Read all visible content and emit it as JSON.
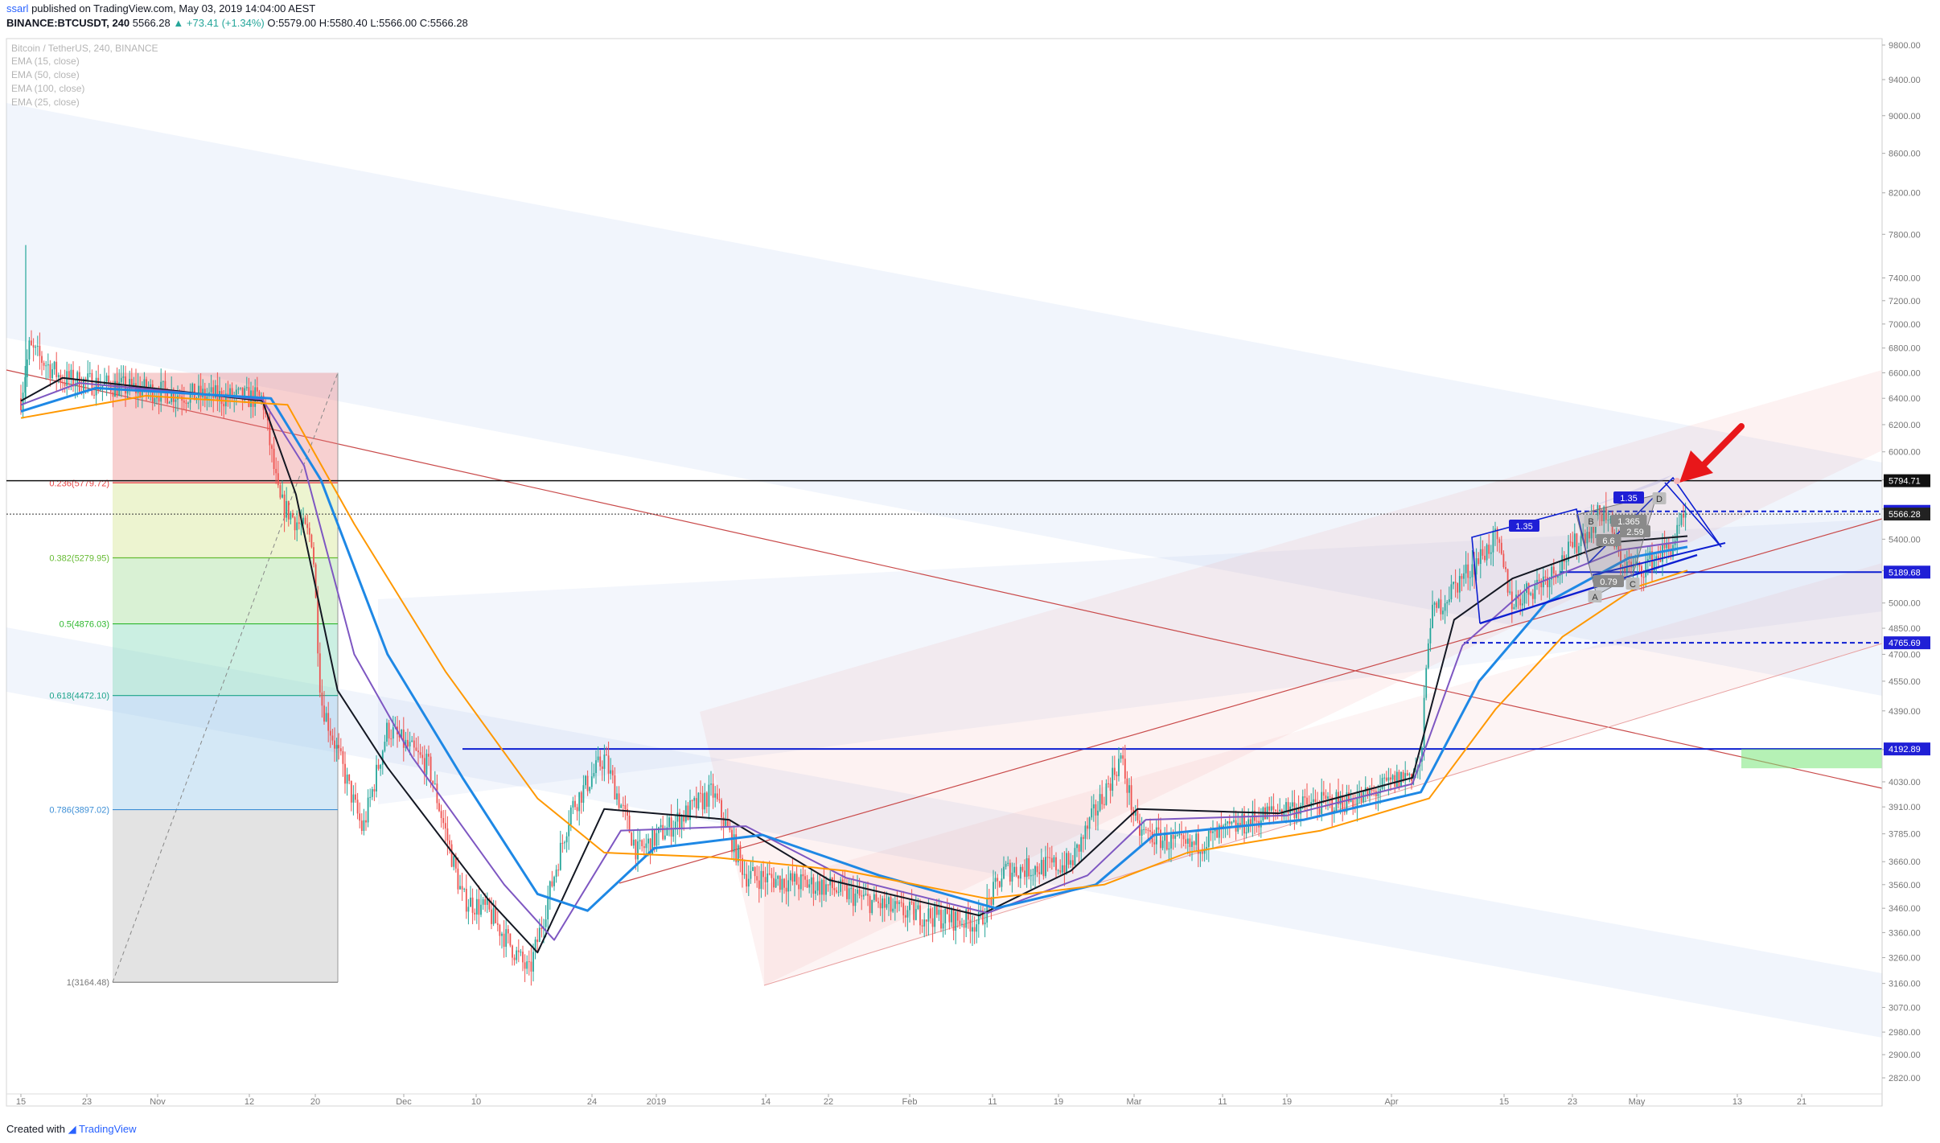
{
  "header": {
    "user": "ssarl",
    "published_text": "published on TradingView.com, May 03, 2019 14:04:00 AEST",
    "symbol": "BINANCE:BTCUSDT, 240",
    "last": "5566.28",
    "change": "▲ +73.41 (+1.34%)",
    "o": "O:5579.00",
    "h": "H:5580.40",
    "l": "L:5566.00",
    "c": "C:5566.28"
  },
  "legend": {
    "title": "Bitcoin / TetherUS, 240, BINANCE",
    "indicators": [
      "EMA (15, close)",
      "EMA (50, close)",
      "EMA (100, close)",
      "EMA (25, close)"
    ]
  },
  "footer": {
    "created_with": "Created with",
    "brand": "TradingView"
  },
  "colors": {
    "up": "#26a69a",
    "down": "#ef5350",
    "ema15": "#131722",
    "ema25": "#7e57c2",
    "ema50": "#1e88e5",
    "ema100": "#ff9800",
    "level": "#0d1fd1",
    "fib_red": "#e84545",
    "arrow": "#e8171a"
  },
  "chart_data": {
    "type": "line",
    "title": "Bitcoin / TetherUS, 240, BINANCE",
    "y_scale": "log",
    "y_ticks": [
      9800,
      9400,
      9000,
      8600,
      8200,
      7800,
      7400,
      7200,
      7000,
      6800,
      6600,
      6400,
      6200,
      6000,
      5800,
      5600,
      5400,
      5200,
      5000,
      4850,
      4700,
      4550,
      4390,
      4190,
      4030,
      3910,
      3785,
      3660,
      3560,
      3460,
      3360,
      3260,
      3160,
      3070,
      2980,
      2900,
      2820
    ],
    "x_ticks": [
      "15",
      "23",
      "Nov",
      "12",
      "20",
      "Dec",
      "10",
      "24",
      "2019",
      "14",
      "22",
      "Feb",
      "11",
      "19",
      "Mar",
      "11",
      "19",
      "Apr",
      "15",
      "23",
      "May",
      "13",
      "21"
    ],
    "price_series": [
      {
        "date": "2018-10-15",
        "price": 6400
      },
      {
        "date": "2018-10-16",
        "price": 6800
      },
      {
        "date": "2018-10-20",
        "price": 6550
      },
      {
        "date": "2018-10-28",
        "price": 6480
      },
      {
        "date": "2018-11-05",
        "price": 6420
      },
      {
        "date": "2018-11-13",
        "price": 6400
      },
      {
        "date": "2018-11-15",
        "price": 5650
      },
      {
        "date": "2018-11-19",
        "price": 5400
      },
      {
        "date": "2018-11-20",
        "price": 4450
      },
      {
        "date": "2018-11-25",
        "price": 3800
      },
      {
        "date": "2018-11-28",
        "price": 4300
      },
      {
        "date": "2018-12-03",
        "price": 4100
      },
      {
        "date": "2018-12-07",
        "price": 3500
      },
      {
        "date": "2018-12-10",
        "price": 3450
      },
      {
        "date": "2018-12-15",
        "price": 3200
      },
      {
        "date": "2018-12-20",
        "price": 3900
      },
      {
        "date": "2018-12-24",
        "price": 4150
      },
      {
        "date": "2018-12-28",
        "price": 3700
      },
      {
        "date": "2019-01-06",
        "price": 3980
      },
      {
        "date": "2019-01-10",
        "price": 3600
      },
      {
        "date": "2019-01-20",
        "price": 3550
      },
      {
        "date": "2019-01-28",
        "price": 3450
      },
      {
        "date": "2019-02-07",
        "price": 3400
      },
      {
        "date": "2019-02-10",
        "price": 3620
      },
      {
        "date": "2019-02-18",
        "price": 3650
      },
      {
        "date": "2019-02-24",
        "price": 4150
      },
      {
        "date": "2019-02-26",
        "price": 3800
      },
      {
        "date": "2019-03-04",
        "price": 3720
      },
      {
        "date": "2019-03-15",
        "price": 3900
      },
      {
        "date": "2019-03-25",
        "price": 3950
      },
      {
        "date": "2019-04-01",
        "price": 4100
      },
      {
        "date": "2019-04-02",
        "price": 4900
      },
      {
        "date": "2019-04-05",
        "price": 5100
      },
      {
        "date": "2019-04-10",
        "price": 5400
      },
      {
        "date": "2019-04-12",
        "price": 5000
      },
      {
        "date": "2019-04-17",
        "price": 5200
      },
      {
        "date": "2019-04-23",
        "price": 5600
      },
      {
        "date": "2019-04-25",
        "price": 5250
      },
      {
        "date": "2019-04-27",
        "price": 5200
      },
      {
        "date": "2019-05-01",
        "price": 5350
      },
      {
        "date": "2019-05-03",
        "price": 5566.28
      }
    ],
    "ema_series": [
      {
        "name": "EMA (15, close)",
        "color": "#131722",
        "values": [
          {
            "date": "2018-10-15",
            "price": 6380
          },
          {
            "date": "2018-10-20",
            "price": 6560
          },
          {
            "date": "2018-11-13",
            "price": 6380
          },
          {
            "date": "2018-11-17",
            "price": 5700
          },
          {
            "date": "2018-11-22",
            "price": 4500
          },
          {
            "date": "2018-11-28",
            "price": 4100
          },
          {
            "date": "2018-12-10",
            "price": 3500
          },
          {
            "date": "2018-12-16",
            "price": 3280
          },
          {
            "date": "2018-12-24",
            "price": 3900
          },
          {
            "date": "2019-01-08",
            "price": 3850
          },
          {
            "date": "2019-01-20",
            "price": 3580
          },
          {
            "date": "2019-02-07",
            "price": 3430
          },
          {
            "date": "2019-02-18",
            "price": 3620
          },
          {
            "date": "2019-02-26",
            "price": 3900
          },
          {
            "date": "2019-03-15",
            "price": 3880
          },
          {
            "date": "2019-03-31",
            "price": 4050
          },
          {
            "date": "2019-04-05",
            "price": 4900
          },
          {
            "date": "2019-04-12",
            "price": 5150
          },
          {
            "date": "2019-04-24",
            "price": 5380
          },
          {
            "date": "2019-05-03",
            "price": 5420
          }
        ]
      },
      {
        "name": "EMA (25, close)",
        "color": "#7e57c2",
        "values": [
          {
            "date": "2018-10-15",
            "price": 6350
          },
          {
            "date": "2018-10-22",
            "price": 6520
          },
          {
            "date": "2018-11-13",
            "price": 6390
          },
          {
            "date": "2018-11-18",
            "price": 5900
          },
          {
            "date": "2018-11-24",
            "price": 4700
          },
          {
            "date": "2018-12-01",
            "price": 4150
          },
          {
            "date": "2018-12-12",
            "price": 3560
          },
          {
            "date": "2018-12-18",
            "price": 3330
          },
          {
            "date": "2018-12-26",
            "price": 3800
          },
          {
            "date": "2019-01-10",
            "price": 3820
          },
          {
            "date": "2019-01-22",
            "price": 3590
          },
          {
            "date": "2019-02-08",
            "price": 3440
          },
          {
            "date": "2019-02-20",
            "price": 3600
          },
          {
            "date": "2019-02-27",
            "price": 3850
          },
          {
            "date": "2019-03-16",
            "price": 3870
          },
          {
            "date": "2019-03-31",
            "price": 4020
          },
          {
            "date": "2019-04-06",
            "price": 4750
          },
          {
            "date": "2019-04-14",
            "price": 5100
          },
          {
            "date": "2019-04-25",
            "price": 5330
          },
          {
            "date": "2019-05-03",
            "price": 5390
          }
        ]
      },
      {
        "name": "EMA (50, close)",
        "color": "#1e88e5",
        "values": [
          {
            "date": "2018-10-15",
            "price": 6300
          },
          {
            "date": "2018-10-24",
            "price": 6480
          },
          {
            "date": "2018-11-14",
            "price": 6400
          },
          {
            "date": "2018-11-20",
            "price": 5800
          },
          {
            "date": "2018-11-28",
            "price": 4700
          },
          {
            "date": "2018-12-07",
            "price": 4050
          },
          {
            "date": "2018-12-16",
            "price": 3520
          },
          {
            "date": "2018-12-22",
            "price": 3450
          },
          {
            "date": "2018-12-30",
            "price": 3720
          },
          {
            "date": "2019-01-12",
            "price": 3780
          },
          {
            "date": "2019-01-26",
            "price": 3600
          },
          {
            "date": "2019-02-09",
            "price": 3460
          },
          {
            "date": "2019-02-21",
            "price": 3560
          },
          {
            "date": "2019-02-28",
            "price": 3780
          },
          {
            "date": "2019-03-18",
            "price": 3850
          },
          {
            "date": "2019-04-01",
            "price": 3980
          },
          {
            "date": "2019-04-08",
            "price": 4550
          },
          {
            "date": "2019-04-16",
            "price": 5000
          },
          {
            "date": "2019-04-26",
            "price": 5280
          },
          {
            "date": "2019-05-03",
            "price": 5350
          }
        ]
      },
      {
        "name": "EMA (100, close)",
        "color": "#ff9800",
        "values": [
          {
            "date": "2018-10-15",
            "price": 6250
          },
          {
            "date": "2018-10-30",
            "price": 6420
          },
          {
            "date": "2018-11-16",
            "price": 6350
          },
          {
            "date": "2018-11-24",
            "price": 5500
          },
          {
            "date": "2018-12-05",
            "price": 4600
          },
          {
            "date": "2018-12-16",
            "price": 3950
          },
          {
            "date": "2018-12-24",
            "price": 3700
          },
          {
            "date": "2019-01-06",
            "price": 3680
          },
          {
            "date": "2019-01-22",
            "price": 3620
          },
          {
            "date": "2019-02-08",
            "price": 3500
          },
          {
            "date": "2019-02-22",
            "price": 3560
          },
          {
            "date": "2019-03-04",
            "price": 3700
          },
          {
            "date": "2019-03-20",
            "price": 3800
          },
          {
            "date": "2019-04-02",
            "price": 3950
          },
          {
            "date": "2019-04-10",
            "price": 4400
          },
          {
            "date": "2019-04-18",
            "price": 4800
          },
          {
            "date": "2019-04-27",
            "price": 5100
          },
          {
            "date": "2019-05-03",
            "price": 5200
          }
        ]
      }
    ],
    "fib_retracement": [
      {
        "ratio": "0.236",
        "label": "0.236(5779.72)",
        "price": 5779.72,
        "color": "#e84545"
      },
      {
        "ratio": "0.382",
        "label": "0.382(5279.95)",
        "price": 5279.95,
        "color": "#66bb33"
      },
      {
        "ratio": "0.5",
        "label": "0.5(4876.03)",
        "price": 4876.03,
        "color": "#2eb82e"
      },
      {
        "ratio": "0.618",
        "label": "0.618(4472.10)",
        "price": 4472.1,
        "color": "#1aa38a"
      },
      {
        "ratio": "0.786",
        "label": "0.786(3897.02)",
        "price": 3897.02,
        "color": "#3d8fd6"
      },
      {
        "ratio": "1",
        "label": "1(3164.48)",
        "price": 3164.48,
        "color": "#777777"
      }
    ],
    "price_labels": [
      {
        "value": "5794.71",
        "price": 5794.71,
        "style": "black"
      },
      {
        "value": "5584.37",
        "price": 5584.37,
        "style": "blue"
      },
      {
        "value": "5566.28",
        "price": 5566.28,
        "style": "dark"
      },
      {
        "value": "5189.68",
        "price": 5189.68,
        "style": "blue"
      },
      {
        "value": "4765.69",
        "price": 4765.69,
        "style": "blue"
      },
      {
        "value": "4192.89",
        "price": 4192.89,
        "style": "blue"
      }
    ],
    "pattern_labels": [
      {
        "text": "1.35",
        "style": "blue"
      },
      {
        "text": "1.35",
        "style": "blue"
      },
      {
        "text": "1.365",
        "style": "gray"
      },
      {
        "text": "2.59",
        "style": "gray"
      },
      {
        "text": "0.79",
        "style": "gray"
      },
      {
        "text": "A",
        "style": "point"
      },
      {
        "text": "D",
        "style": "point"
      },
      {
        "text": "C",
        "style": "point"
      },
      {
        "text": "B",
        "style": "point"
      },
      {
        "text": "6.6",
        "style": "gray"
      }
    ]
  }
}
